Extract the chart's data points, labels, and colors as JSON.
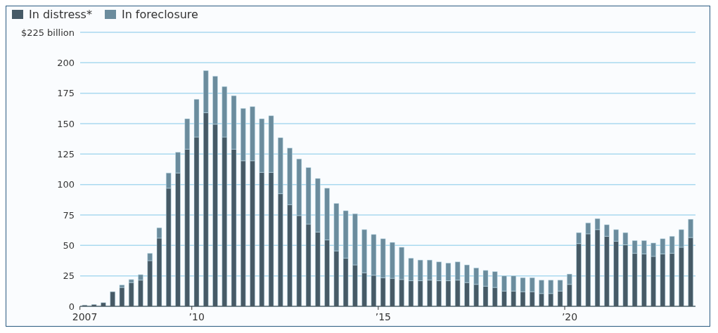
{
  "chart_data": {
    "type": "bar",
    "stacked": true,
    "categories": [
      "2007",
      null,
      null,
      null,
      null,
      null,
      null,
      null,
      null,
      null,
      null,
      null,
      "’10",
      null,
      null,
      null,
      null,
      null,
      null,
      null,
      null,
      null,
      null,
      null,
      null,
      null,
      null,
      null,
      null,
      null,
      null,
      null,
      "’15",
      null,
      null,
      null,
      null,
      null,
      null,
      null,
      null,
      null,
      null,
      null,
      null,
      null,
      null,
      null,
      null,
      null,
      null,
      null,
      "’20",
      null,
      null,
      null,
      null,
      null,
      null,
      null,
      null,
      null,
      null,
      null,
      null,
      null
    ],
    "series": [
      {
        "name": "In distress*",
        "color": "#465a66",
        "values": [
          1,
          1.5,
          3,
          12,
          15.5,
          19.5,
          21.5,
          37.5,
          56,
          97,
          109.5,
          129,
          139,
          159,
          149.5,
          139,
          129,
          119.5,
          119.5,
          110,
          110,
          92.5,
          83.5,
          74.5,
          67.5,
          61,
          54.5,
          45.5,
          39.5,
          34,
          27.5,
          25.5,
          23.5,
          23,
          22,
          21,
          21,
          21.5,
          21,
          21,
          21.5,
          19.5,
          18,
          16.5,
          15.5,
          12.5,
          12.5,
          12,
          12,
          10.5,
          10.5,
          12.5,
          18,
          51.5,
          59.5,
          63,
          57.5,
          53.5,
          50.5,
          43.5,
          43,
          41,
          43,
          43.5,
          48.5,
          56.5
        ]
      },
      {
        "name": "In foreclosure",
        "color": "#6b8c9d",
        "values": [
          0,
          0,
          0,
          0,
          2,
          2.5,
          4.5,
          6,
          8.5,
          12.5,
          17,
          25,
          31,
          34.5,
          39.5,
          41.5,
          44,
          43,
          44.5,
          44,
          46.5,
          46,
          46.5,
          46.5,
          46.5,
          44,
          42.5,
          39,
          39,
          42,
          35.5,
          33.5,
          32,
          29.5,
          26.5,
          18.5,
          17,
          16.5,
          15.5,
          14.5,
          15,
          14.5,
          13.5,
          13,
          13,
          12.5,
          12.5,
          11.5,
          11.5,
          11,
          11,
          9,
          8.5,
          9,
          9,
          9,
          9.5,
          9.5,
          10,
          10.5,
          11,
          11,
          12.5,
          14,
          14.5,
          15
        ]
      }
    ],
    "ylim": [
      0,
      225
    ],
    "yticks": [
      0,
      25,
      50,
      75,
      100,
      125,
      150,
      175,
      200,
      {
        "value": 225,
        "label": "$225 billion"
      }
    ],
    "grid": "y",
    "legend": "top left"
  }
}
